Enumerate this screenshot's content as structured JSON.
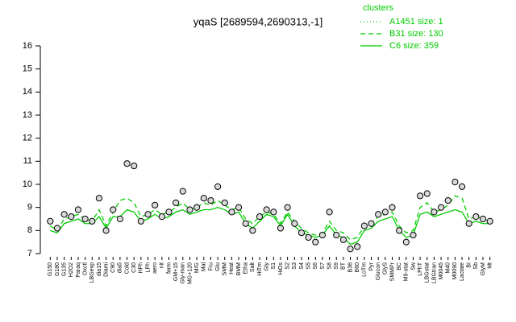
{
  "chart_data": {
    "type": "line",
    "title": "yqaS [2689594,2690313,-1]",
    "legend_title": "clusters",
    "legend_position": "top-right",
    "categories": [
      "G150",
      "G180",
      "G135",
      "H2O2",
      "Paraq",
      "Oxctl",
      "LBGexp",
      "dia15",
      "Diami",
      "C90",
      "dia5",
      "Cold",
      "C30",
      "HPh",
      "LPh",
      "aero",
      "nit",
      "ferm",
      "GM+15",
      "Gly-man",
      "MG+120",
      "M/G",
      "Mal",
      "Fru",
      "Glu",
      "SMM",
      "Heat",
      "BMM",
      "Etha",
      "Salt",
      "HiTm",
      "Gly",
      "S1",
      "HiOs",
      "S2",
      "S3",
      "S4",
      "S5",
      "S6",
      "S7",
      "S8",
      "S9",
      "BT",
      "B36",
      "B60",
      "LoTm",
      "Pyr",
      "Glucon",
      "GlyS",
      "SMMPr",
      "BC",
      "M9-stat",
      "Sw",
      "LPhT",
      "LBGstat",
      "LBGtran",
      "M0045",
      "M40",
      "M0090",
      "Lactate",
      "BI",
      "Sb",
      "GlyM",
      "Mt"
    ],
    "points": {
      "color": "#000000",
      "fill": "#d9d9d9",
      "values": [
        8.4,
        8.1,
        8.7,
        8.6,
        8.9,
        8.5,
        8.4,
        9.4,
        8.0,
        8.9,
        8.5,
        10.9,
        10.8,
        8.4,
        8.7,
        9.1,
        8.6,
        8.8,
        9.2,
        9.7,
        8.9,
        9.0,
        9.4,
        9.3,
        9.9,
        9.2,
        8.8,
        9.0,
        8.3,
        8.0,
        8.6,
        8.9,
        8.8,
        8.1,
        9.0,
        8.3,
        7.9,
        7.7,
        7.5,
        7.8,
        8.8,
        7.8,
        7.6,
        7.2,
        7.3,
        8.2,
        8.3,
        8.7,
        8.8,
        9.0,
        8.0,
        7.5,
        7.8,
        9.5,
        9.6,
        8.8,
        9.0,
        9.3,
        10.1,
        9.9,
        8.3,
        8.6,
        8.5,
        8.4
      ]
    },
    "series": [
      {
        "name": "A1451 size: 1",
        "color": "#00cc00",
        "dash": "dotted",
        "values": [
          null,
          null,
          null,
          null,
          null,
          null,
          null,
          null,
          null,
          null,
          null,
          null,
          null,
          null,
          null,
          null,
          null,
          null,
          null,
          null,
          null,
          null,
          null,
          null,
          null,
          null,
          null,
          null,
          null,
          null,
          null,
          null,
          null,
          null,
          null,
          null,
          null,
          null,
          null,
          null,
          null,
          null,
          null,
          null,
          null,
          null,
          null,
          null,
          null,
          null,
          null,
          null,
          null,
          null,
          null,
          null,
          null,
          null,
          null,
          null,
          null,
          null,
          null,
          null
        ]
      },
      {
        "name": "B31 size: 130",
        "color": "#00cc00",
        "dash": "dashed",
        "values": [
          8.2,
          8.0,
          8.5,
          8.6,
          8.7,
          8.5,
          8.4,
          8.9,
          8.2,
          8.8,
          9.3,
          9.4,
          9.2,
          8.6,
          8.7,
          8.9,
          8.7,
          8.8,
          9.0,
          9.2,
          8.9,
          9.0,
          9.2,
          9.1,
          9.3,
          9.1,
          8.9,
          9.0,
          8.5,
          8.3,
          8.6,
          8.8,
          8.7,
          8.3,
          8.8,
          8.4,
          8.1,
          7.9,
          7.8,
          7.9,
          8.4,
          8.0,
          7.9,
          7.6,
          7.7,
          8.2,
          8.3,
          8.6,
          8.7,
          8.8,
          8.2,
          7.9,
          8.0,
          9.0,
          9.2,
          8.8,
          8.9,
          9.1,
          9.5,
          9.4,
          8.5,
          8.6,
          8.5,
          8.4
        ]
      },
      {
        "name": "C6 size: 359",
        "color": "#00cc00",
        "dash": "solid",
        "values": [
          8.0,
          7.9,
          8.3,
          8.4,
          8.5,
          8.3,
          8.3,
          8.6,
          8.1,
          8.6,
          8.6,
          8.9,
          8.8,
          8.4,
          8.5,
          8.7,
          8.5,
          8.6,
          8.8,
          8.9,
          8.7,
          8.8,
          8.9,
          8.9,
          9.0,
          8.9,
          8.7,
          8.8,
          8.3,
          8.1,
          8.4,
          8.7,
          8.6,
          8.2,
          8.7,
          8.2,
          7.9,
          7.8,
          7.7,
          7.8,
          8.2,
          7.8,
          7.7,
          7.4,
          7.5,
          8.0,
          8.1,
          8.4,
          8.5,
          8.6,
          8.0,
          7.7,
          7.8,
          8.7,
          8.8,
          8.6,
          8.7,
          8.8,
          8.9,
          8.8,
          8.3,
          8.4,
          8.3,
          8.3
        ]
      }
    ],
    "ylim": [
      7,
      16
    ],
    "yticks": [
      7,
      8,
      9,
      10,
      11,
      12,
      13,
      14,
      15,
      16
    ]
  }
}
